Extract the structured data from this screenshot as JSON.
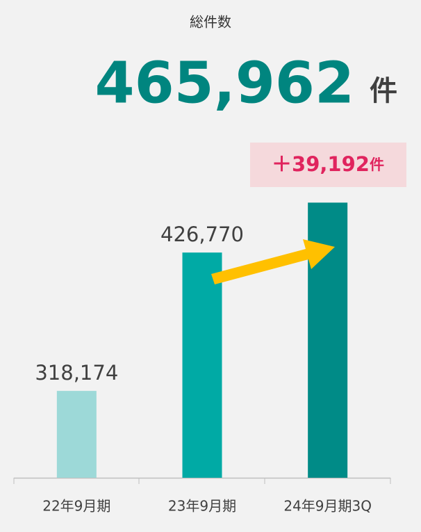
{
  "chart_data": {
    "type": "bar",
    "title": "総件数",
    "headline_unit": "件",
    "categories": [
      "22年9月期",
      "23年9月期",
      "24年9月期3Q"
    ],
    "values": [
      318174,
      426770,
      465962
    ],
    "value_labels": [
      "318,174",
      "426,770",
      "465,962"
    ],
    "colors": [
      "#9dd9d8",
      "#00aaa5",
      "#008b87"
    ],
    "ylim": [
      250000,
      500000
    ],
    "annotation": {
      "text": "＋39,192",
      "unit": "件"
    }
  }
}
